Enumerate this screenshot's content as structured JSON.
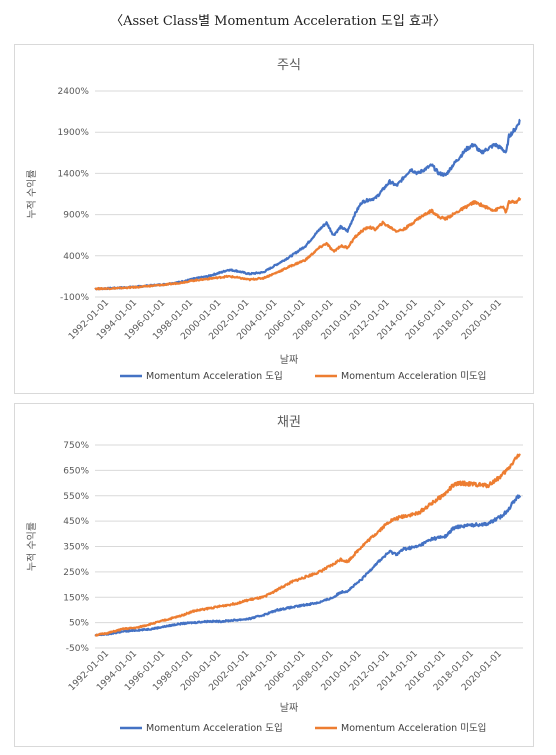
{
  "page": {
    "title": "〈Asset Class별 Momentum Acceleration 도입 효과〉"
  },
  "chart_data": [
    {
      "type": "line",
      "title": "주식",
      "xlabel": "날짜",
      "ylabel": "누적 수익률",
      "ylim": [
        -100,
        2400
      ],
      "y_ticks": [
        "2400%",
        "1900%",
        "1400%",
        "900%",
        "400%",
        "-100%"
      ],
      "x_ticks": [
        "1992-01-01",
        "1994-01-01",
        "1996-01-01",
        "1998-01-01",
        "2000-01-01",
        "2002-01-01",
        "2004-01-01",
        "2006-01-01",
        "2008-01-01",
        "2010-01-01",
        "2012-01-01",
        "2014-01-01",
        "2016-01-01",
        "2018-01-01",
        "2020-01-01"
      ],
      "grid": true,
      "legend_position": "bottom",
      "x": [
        1991.0,
        1992,
        1993,
        1994,
        1995,
        1996,
        1997,
        1998,
        1999,
        2000,
        2000.5,
        2001,
        2002,
        2003,
        2004,
        2005,
        2006,
        2007,
        2007.5,
        2008,
        2008.5,
        2009,
        2009.5,
        2010,
        2010.5,
        2011,
        2011.5,
        2012,
        2012.5,
        2013,
        2013.5,
        2014,
        2014.5,
        2015,
        2015.5,
        2016,
        2016.5,
        2017,
        2017.5,
        2018,
        2018.5,
        2019,
        2019.5,
        2020,
        2020.3,
        2020.5,
        2021,
        2021.3
      ],
      "series": [
        {
          "name": "Momentum Acceleration 도입",
          "color": "#4472c4",
          "values": [
            0,
            5,
            15,
            25,
            40,
            55,
            80,
            120,
            150,
            200,
            230,
            220,
            180,
            200,
            300,
            400,
            520,
            720,
            800,
            650,
            750,
            700,
            900,
            1050,
            1080,
            1100,
            1200,
            1300,
            1250,
            1350,
            1450,
            1400,
            1450,
            1500,
            1400,
            1380,
            1500,
            1600,
            1700,
            1750,
            1650,
            1700,
            1750,
            1700,
            1650,
            1850,
            1950,
            2050
          ]
        },
        {
          "name": "Momentum Acceleration 미도입",
          "color": "#ed7d31",
          "values": [
            0,
            3,
            10,
            20,
            35,
            50,
            70,
            100,
            120,
            140,
            150,
            140,
            110,
            130,
            200,
            280,
            350,
            500,
            550,
            450,
            520,
            500,
            620,
            700,
            750,
            720,
            800,
            750,
            700,
            720,
            780,
            850,
            900,
            950,
            870,
            850,
            900,
            950,
            1000,
            1050,
            1020,
            980,
            950,
            1000,
            930,
            1050,
            1050,
            1100
          ]
        }
      ]
    },
    {
      "type": "line",
      "title": "채권",
      "xlabel": "날짜",
      "ylabel": "누적 수익률",
      "ylim": [
        -50,
        750
      ],
      "y_ticks": [
        "750%",
        "650%",
        "550%",
        "450%",
        "350%",
        "250%",
        "150%",
        "50%",
        "-50%"
      ],
      "x_ticks": [
        "1992-01-01",
        "1994-01-01",
        "1996-01-01",
        "1998-01-01",
        "2000-01-01",
        "2002-01-01",
        "2004-01-01",
        "2006-01-01",
        "2008-01-01",
        "2010-01-01",
        "2012-01-01",
        "2014-01-01",
        "2016-01-01",
        "2018-01-01",
        "2020-01-01"
      ],
      "grid": true,
      "legend_position": "bottom",
      "x": [
        1991.0,
        1992,
        1993,
        1994,
        1995,
        1996,
        1997,
        1998,
        1999,
        2000,
        2001,
        2002,
        2003,
        2004,
        2005,
        2006,
        2007,
        2008,
        2008.5,
        2009,
        2010,
        2011,
        2012,
        2012.5,
        2013,
        2014,
        2015,
        2016,
        2016.5,
        2017,
        2018,
        2019,
        2020,
        2020.5,
        2021,
        2021.3
      ],
      "series": [
        {
          "name": "Momentum Acceleration 도입",
          "color": "#4472c4",
          "values": [
            0,
            5,
            15,
            20,
            25,
            35,
            45,
            50,
            55,
            55,
            60,
            65,
            80,
            100,
            110,
            120,
            130,
            150,
            170,
            175,
            220,
            280,
            330,
            320,
            340,
            350,
            380,
            390,
            420,
            430,
            435,
            440,
            470,
            500,
            540,
            550
          ]
        },
        {
          "name": "Momentum Acceleration 미도입",
          "color": "#ed7d31",
          "values": [
            0,
            10,
            25,
            30,
            45,
            60,
            75,
            95,
            105,
            115,
            125,
            140,
            150,
            180,
            210,
            230,
            250,
            280,
            300,
            290,
            350,
            400,
            450,
            460,
            470,
            480,
            520,
            560,
            590,
            600,
            595,
            590,
            630,
            660,
            700,
            710
          ]
        }
      ]
    }
  ]
}
